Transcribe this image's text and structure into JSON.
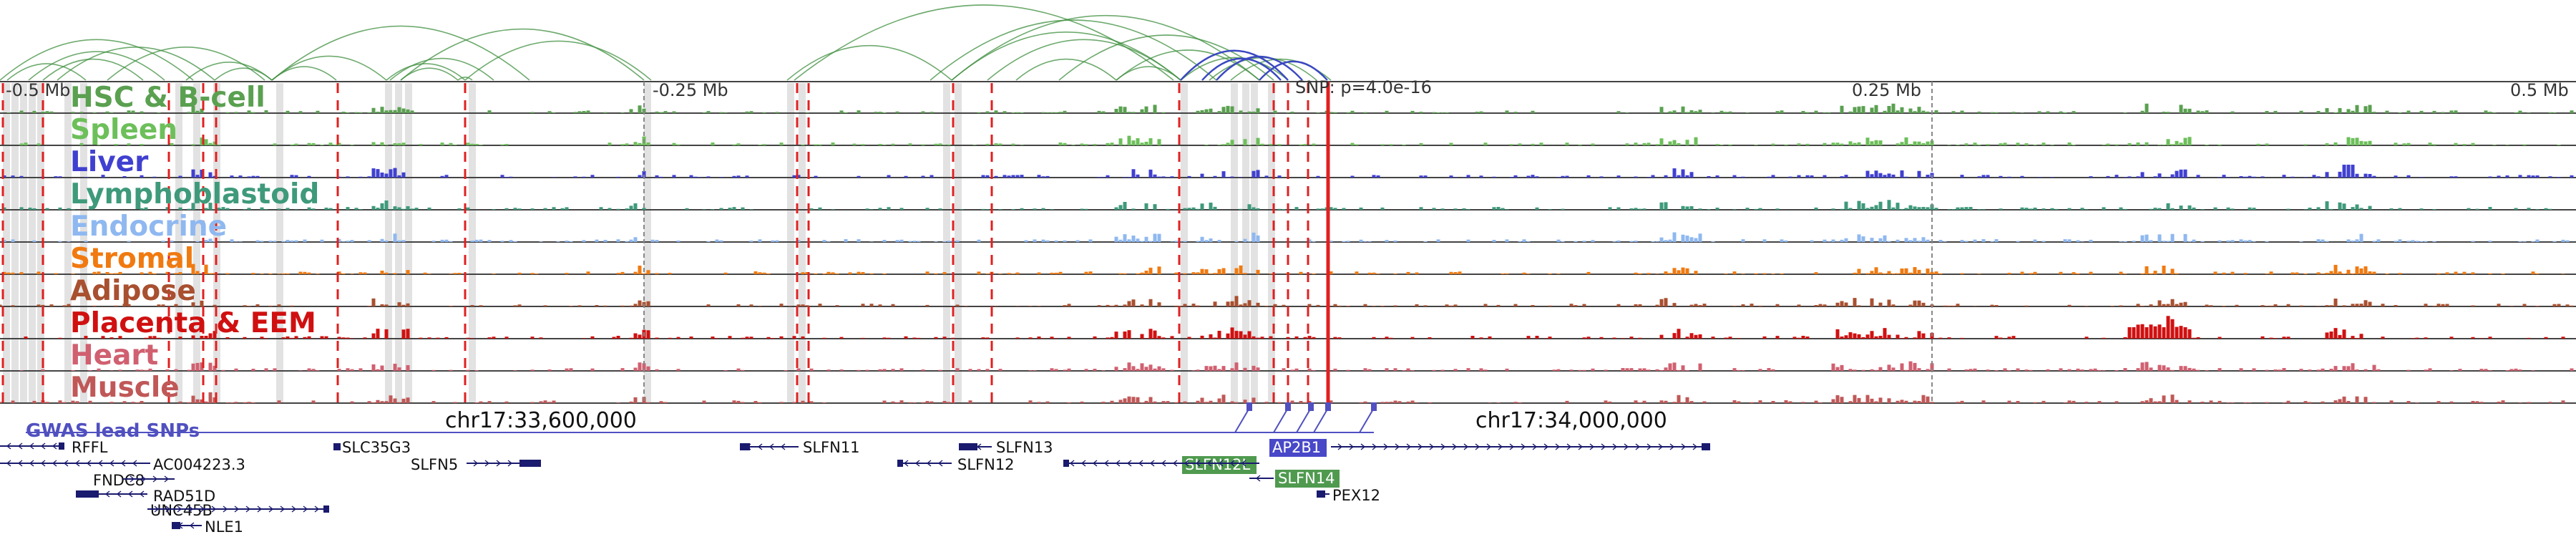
{
  "scale_labels": {
    "left": "-0.5 Mb",
    "mid_left": "-0.25 Mb",
    "snp": "SNP: p=4.0e-16",
    "mid_right": "0.25 Mb",
    "right": "0.5 Mb"
  },
  "tracks": [
    {
      "name": "HSC & B-cell",
      "color": "#5aa050"
    },
    {
      "name": "Spleen",
      "color": "#6dbf5a"
    },
    {
      "name": "Liver",
      "color": "#4040d0"
    },
    {
      "name": "Lymphoblastoid",
      "color": "#3e9a7a"
    },
    {
      "name": "Endocrine",
      "color": "#8fb8f0"
    },
    {
      "name": "Stromal",
      "color": "#f07a10"
    },
    {
      "name": "Adipose",
      "color": "#a85030"
    },
    {
      "name": "Placenta & EEM",
      "color": "#d01010"
    },
    {
      "name": "Heart",
      "color": "#d06070"
    },
    {
      "name": "Muscle",
      "color": "#c05858"
    }
  ],
  "coordinates": {
    "left": "chr17:33,600,000",
    "right": "chr17:34,000,000"
  },
  "gwas_label": "GWAS lead SNPs",
  "genes": [
    {
      "name": "RFFL",
      "highlight": ""
    },
    {
      "name": "AC004223.3",
      "highlight": ""
    },
    {
      "name": "FNDC8",
      "highlight": ""
    },
    {
      "name": "RAD51D",
      "highlight": ""
    },
    {
      "name": "UNC45B",
      "highlight": ""
    },
    {
      "name": "NLE1",
      "highlight": ""
    },
    {
      "name": "SLC35G3",
      "highlight": ""
    },
    {
      "name": "SLFN5",
      "highlight": ""
    },
    {
      "name": "SLFN11",
      "highlight": ""
    },
    {
      "name": "SLFN13",
      "highlight": ""
    },
    {
      "name": "SLFN12",
      "highlight": ""
    },
    {
      "name": "SLFN12L",
      "highlight": "#4f9a4f"
    },
    {
      "name": "AP2B1",
      "highlight": "#4848c8"
    },
    {
      "name": "SLFN14",
      "highlight": "#4f9a4f"
    },
    {
      "name": "PEX12",
      "highlight": ""
    }
  ],
  "colors": {
    "loop_green": "#3f8f3f",
    "loop_blue": "#3a48c0",
    "snp_red": "#e02020",
    "gwas": "#5050c0",
    "gene": "#1a1a6e",
    "shade": "#d8d8d8"
  }
}
